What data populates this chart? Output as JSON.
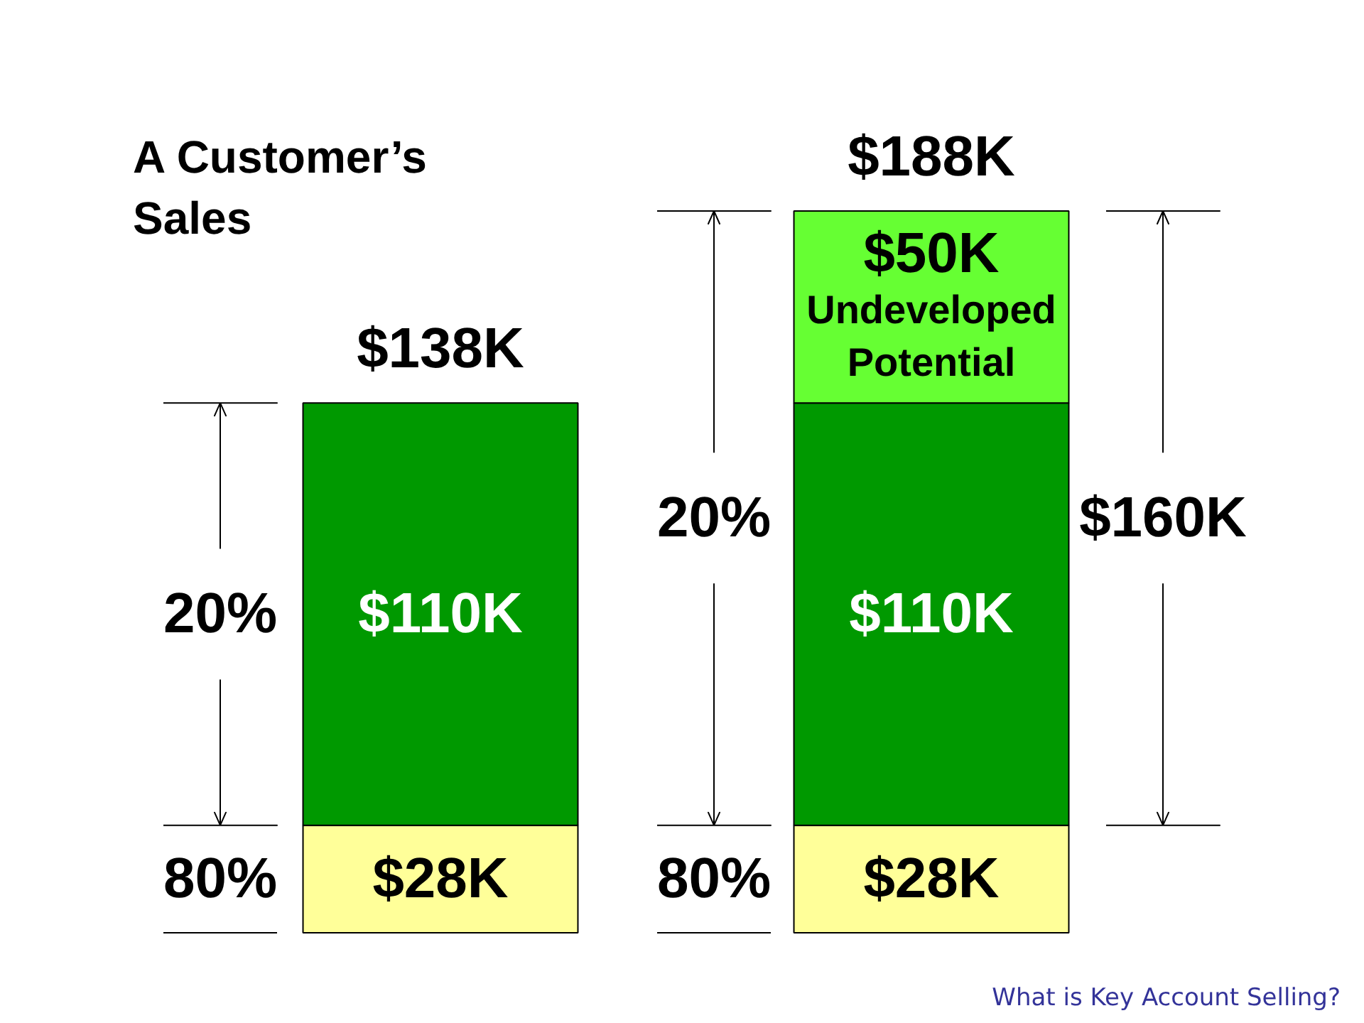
{
  "chart_data": {
    "type": "bar",
    "stacked": true,
    "title": "A Customer’s Sales",
    "categories": [
      null,
      null
    ],
    "series": [
      {
        "color": "#ffff99",
        "values": [
          28,
          28
        ],
        "value_labels": [
          "$28K",
          "$28K"
        ]
      },
      {
        "color": "#009900",
        "values": [
          110,
          110
        ],
        "value_labels": [
          "$110K",
          "$110K"
        ]
      },
      {
        "name": "Undeveloped Potential",
        "color": "#66ff33",
        "values": [
          null,
          50
        ],
        "value_labels": [
          null,
          "$50K"
        ]
      }
    ],
    "totals": [
      "$138K",
      "$188K"
    ],
    "tick_labels": false,
    "annotations": [
      "20%",
      "80%",
      "20%",
      "80%",
      "$160K",
      "What is Key Account Selling?"
    ]
  }
}
